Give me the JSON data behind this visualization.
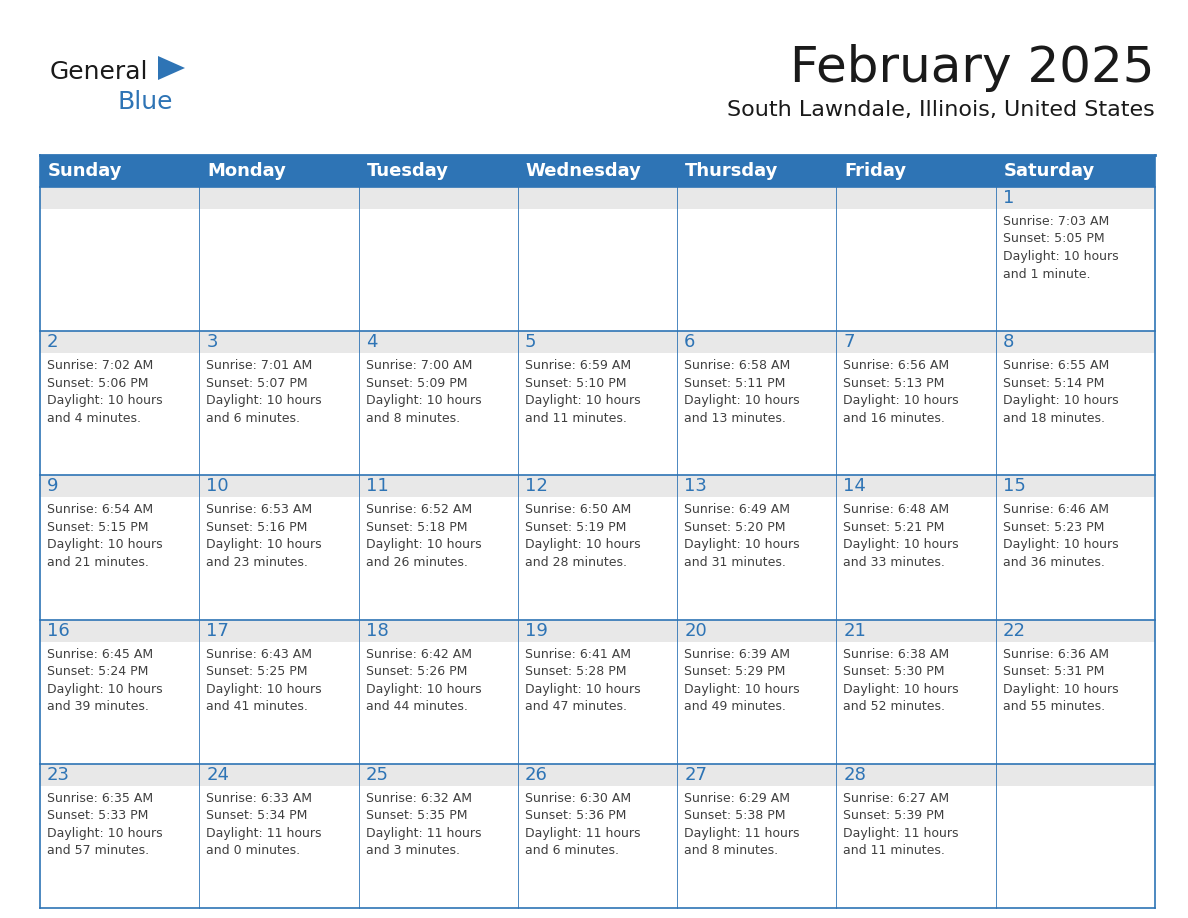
{
  "title": "February 2025",
  "subtitle": "South Lawndale, Illinois, United States",
  "header_bg": "#2E74B5",
  "header_text_color": "#FFFFFF",
  "cell_border_color": "#2E74B5",
  "cell_top_bg": "#e8e8e8",
  "day_number_color": "#2E74B5",
  "info_text_color": "#404040",
  "background_color": "#FFFFFF",
  "days_of_week": [
    "Sunday",
    "Monday",
    "Tuesday",
    "Wednesday",
    "Thursday",
    "Friday",
    "Saturday"
  ],
  "weeks": [
    [
      {
        "day": "",
        "info": ""
      },
      {
        "day": "",
        "info": ""
      },
      {
        "day": "",
        "info": ""
      },
      {
        "day": "",
        "info": ""
      },
      {
        "day": "",
        "info": ""
      },
      {
        "day": "",
        "info": ""
      },
      {
        "day": "1",
        "info": "Sunrise: 7:03 AM\nSunset: 5:05 PM\nDaylight: 10 hours\nand 1 minute."
      }
    ],
    [
      {
        "day": "2",
        "info": "Sunrise: 7:02 AM\nSunset: 5:06 PM\nDaylight: 10 hours\nand 4 minutes."
      },
      {
        "day": "3",
        "info": "Sunrise: 7:01 AM\nSunset: 5:07 PM\nDaylight: 10 hours\nand 6 minutes."
      },
      {
        "day": "4",
        "info": "Sunrise: 7:00 AM\nSunset: 5:09 PM\nDaylight: 10 hours\nand 8 minutes."
      },
      {
        "day": "5",
        "info": "Sunrise: 6:59 AM\nSunset: 5:10 PM\nDaylight: 10 hours\nand 11 minutes."
      },
      {
        "day": "6",
        "info": "Sunrise: 6:58 AM\nSunset: 5:11 PM\nDaylight: 10 hours\nand 13 minutes."
      },
      {
        "day": "7",
        "info": "Sunrise: 6:56 AM\nSunset: 5:13 PM\nDaylight: 10 hours\nand 16 minutes."
      },
      {
        "day": "8",
        "info": "Sunrise: 6:55 AM\nSunset: 5:14 PM\nDaylight: 10 hours\nand 18 minutes."
      }
    ],
    [
      {
        "day": "9",
        "info": "Sunrise: 6:54 AM\nSunset: 5:15 PM\nDaylight: 10 hours\nand 21 minutes."
      },
      {
        "day": "10",
        "info": "Sunrise: 6:53 AM\nSunset: 5:16 PM\nDaylight: 10 hours\nand 23 minutes."
      },
      {
        "day": "11",
        "info": "Sunrise: 6:52 AM\nSunset: 5:18 PM\nDaylight: 10 hours\nand 26 minutes."
      },
      {
        "day": "12",
        "info": "Sunrise: 6:50 AM\nSunset: 5:19 PM\nDaylight: 10 hours\nand 28 minutes."
      },
      {
        "day": "13",
        "info": "Sunrise: 6:49 AM\nSunset: 5:20 PM\nDaylight: 10 hours\nand 31 minutes."
      },
      {
        "day": "14",
        "info": "Sunrise: 6:48 AM\nSunset: 5:21 PM\nDaylight: 10 hours\nand 33 minutes."
      },
      {
        "day": "15",
        "info": "Sunrise: 6:46 AM\nSunset: 5:23 PM\nDaylight: 10 hours\nand 36 minutes."
      }
    ],
    [
      {
        "day": "16",
        "info": "Sunrise: 6:45 AM\nSunset: 5:24 PM\nDaylight: 10 hours\nand 39 minutes."
      },
      {
        "day": "17",
        "info": "Sunrise: 6:43 AM\nSunset: 5:25 PM\nDaylight: 10 hours\nand 41 minutes."
      },
      {
        "day": "18",
        "info": "Sunrise: 6:42 AM\nSunset: 5:26 PM\nDaylight: 10 hours\nand 44 minutes."
      },
      {
        "day": "19",
        "info": "Sunrise: 6:41 AM\nSunset: 5:28 PM\nDaylight: 10 hours\nand 47 minutes."
      },
      {
        "day": "20",
        "info": "Sunrise: 6:39 AM\nSunset: 5:29 PM\nDaylight: 10 hours\nand 49 minutes."
      },
      {
        "day": "21",
        "info": "Sunrise: 6:38 AM\nSunset: 5:30 PM\nDaylight: 10 hours\nand 52 minutes."
      },
      {
        "day": "22",
        "info": "Sunrise: 6:36 AM\nSunset: 5:31 PM\nDaylight: 10 hours\nand 55 minutes."
      }
    ],
    [
      {
        "day": "23",
        "info": "Sunrise: 6:35 AM\nSunset: 5:33 PM\nDaylight: 10 hours\nand 57 minutes."
      },
      {
        "day": "24",
        "info": "Sunrise: 6:33 AM\nSunset: 5:34 PM\nDaylight: 11 hours\nand 0 minutes."
      },
      {
        "day": "25",
        "info": "Sunrise: 6:32 AM\nSunset: 5:35 PM\nDaylight: 11 hours\nand 3 minutes."
      },
      {
        "day": "26",
        "info": "Sunrise: 6:30 AM\nSunset: 5:36 PM\nDaylight: 11 hours\nand 6 minutes."
      },
      {
        "day": "27",
        "info": "Sunrise: 6:29 AM\nSunset: 5:38 PM\nDaylight: 11 hours\nand 8 minutes."
      },
      {
        "day": "28",
        "info": "Sunrise: 6:27 AM\nSunset: 5:39 PM\nDaylight: 11 hours\nand 11 minutes."
      },
      {
        "day": "",
        "info": ""
      }
    ]
  ],
  "logo_text_general": "General",
  "logo_text_blue": "Blue",
  "logo_color_general": "#1a1a1a",
  "logo_color_blue": "#2E74B5",
  "logo_triangle_color": "#2E74B5",
  "title_fontsize": 36,
  "subtitle_fontsize": 16,
  "header_fontsize": 13,
  "day_num_fontsize": 13,
  "info_fontsize": 9
}
